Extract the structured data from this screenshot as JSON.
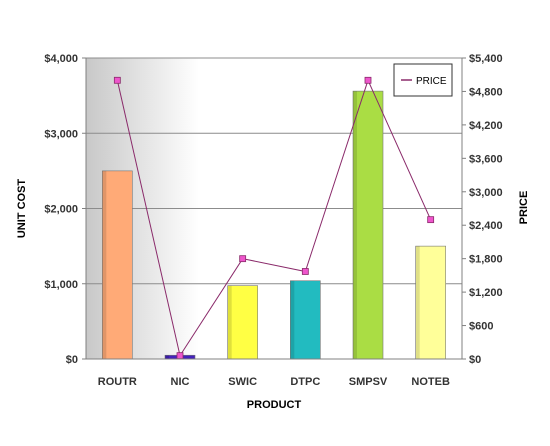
{
  "chart_data": {
    "type": "bar",
    "categories": [
      "ROUTR",
      "NIC",
      "SWIC",
      "DTPC",
      "SMPSV",
      "NOTEB"
    ],
    "series": [
      {
        "kind": "bar",
        "axis": "left",
        "values": [
          2500,
          50,
          975,
          1040,
          3560,
          1500
        ],
        "colors": [
          "#ffaa77",
          "#4422bb",
          "#ffff44",
          "#22bbc0",
          "#aadd44",
          "#ffff99"
        ]
      },
      {
        "name": "PRICE",
        "kind": "line",
        "axis": "right",
        "values": [
          5000,
          60,
          1800,
          1570,
          5000,
          2500
        ],
        "color": "#8a2a6a",
        "marker_color": "#ee55cc"
      }
    ],
    "xlabel": "PRODUCT",
    "ylabel": "UNIT COST",
    "y2label": "PRICE",
    "ylim": [
      0,
      4000
    ],
    "y2lim": [
      0,
      5400
    ],
    "yticks": [
      "$0",
      "$1,000",
      "$2,000",
      "$3,000",
      "$4,000"
    ],
    "y2ticks": [
      "$0",
      "$600",
      "$1,200",
      "$1,800",
      "$2,400",
      "$3,000",
      "$3,600",
      "$4,200",
      "$4,800",
      "$5,400"
    ],
    "grid": true,
    "legend": "top-right"
  }
}
